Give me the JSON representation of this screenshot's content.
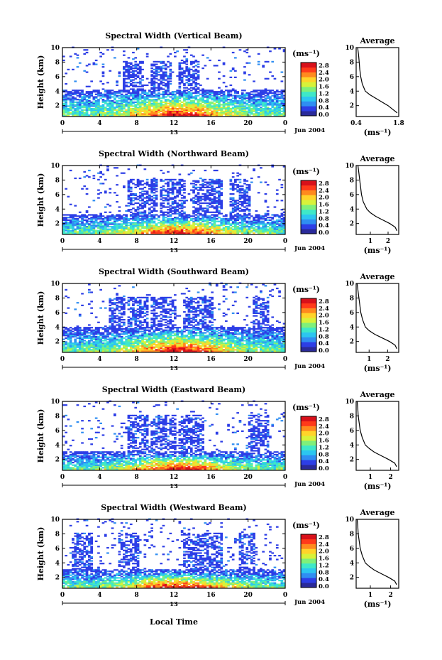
{
  "colorbar": {
    "unit": "(ms⁻¹)",
    "ticks": [
      "2.8",
      "2.4",
      "2.0",
      "1.6",
      "1.2",
      "0.8",
      "0.4",
      "0.0"
    ],
    "colors": [
      "#2a2a9a",
      "#2d3ee6",
      "#2f8ef2",
      "#2cc6f0",
      "#3ee8c8",
      "#7ff07a",
      "#d8f23a",
      "#ffd42a",
      "#ff8a1e",
      "#ff3a1a",
      "#d8101a"
    ]
  },
  "xaxis": {
    "ticks": [
      "0",
      "4",
      "8",
      "12",
      "16",
      "20",
      "0"
    ],
    "sub_label": "13",
    "date_label": "Jun 2004",
    "xlabel": "Local Time"
  },
  "ylabel": "Height (km)",
  "yticks": [
    "10",
    "8",
    "6",
    "4",
    "2"
  ],
  "profile_title": "Average",
  "profile_unit": "(ms⁻¹)",
  "chart_data": [
    {
      "type": "heatmap",
      "title": "Spectral Width (Vertical Beam)",
      "xlabel": "Local Time",
      "ylabel": "Height (km)",
      "x_range": [
        0,
        24
      ],
      "y_range": [
        0.5,
        10
      ],
      "upper_top": 4.2,
      "upper_cols": [
        [
          6.5,
          8.5
        ],
        [
          9.5,
          11.5
        ],
        [
          12.5,
          14.5
        ]
      ],
      "profile": {
        "type": "line",
        "title": "Average",
        "xticks": [
          "0.4",
          "1.8"
        ],
        "xlim": [
          0.4,
          1.8
        ],
        "x": [
          0.45,
          0.48,
          0.5,
          0.52,
          0.55,
          0.6,
          0.7,
          0.85,
          1.05,
          1.25,
          1.45,
          1.6,
          1.75
        ],
        "y": [
          10,
          9,
          8,
          7,
          6,
          5,
          4,
          3.5,
          3,
          2.5,
          2,
          1.5,
          1
        ]
      }
    },
    {
      "type": "heatmap",
      "title": "Spectral Width (Northward Beam)",
      "xlabel": "Local Time",
      "ylabel": "Height (km)",
      "x_range": [
        0,
        24
      ],
      "y_range": [
        0.5,
        10
      ],
      "upper_top": 3.2,
      "upper_cols": [
        [
          7,
          10
        ],
        [
          10.5,
          13
        ],
        [
          14,
          17
        ],
        [
          18,
          20
        ]
      ],
      "profile": {
        "type": "line",
        "title": "Average",
        "xticks": [
          "1",
          "2"
        ],
        "xlim": [
          0.2,
          2.6
        ],
        "x": [
          0.3,
          0.35,
          0.4,
          0.45,
          0.5,
          0.6,
          0.8,
          1.0,
          1.3,
          1.7,
          2.1,
          2.4,
          2.5
        ],
        "y": [
          10,
          9,
          8,
          7,
          6,
          5,
          4,
          3.5,
          3,
          2.5,
          2,
          1.5,
          1
        ]
      }
    },
    {
      "type": "heatmap",
      "title": "Spectral Width (Southward Beam)",
      "xlabel": "Local Time",
      "ylabel": "Height (km)",
      "x_range": [
        0,
        24
      ],
      "y_range": [
        0.5,
        10
      ],
      "upper_top": 4.0,
      "upper_cols": [
        [
          5,
          6.5
        ],
        [
          7,
          9
        ],
        [
          9.5,
          12
        ],
        [
          13,
          16
        ],
        [
          20.5,
          22
        ]
      ],
      "profile": {
        "type": "line",
        "title": "Average",
        "xticks": [
          "1",
          "2"
        ],
        "xlim": [
          0.3,
          2.6
        ],
        "x": [
          0.35,
          0.4,
          0.45,
          0.5,
          0.55,
          0.65,
          0.8,
          1.0,
          1.3,
          1.7,
          2.1,
          2.4,
          2.5
        ],
        "y": [
          10,
          9,
          8,
          7,
          6,
          5,
          4,
          3.5,
          3,
          2.5,
          2,
          1.5,
          1
        ]
      }
    },
    {
      "type": "heatmap",
      "title": "Spectral Width (Eastward Beam)",
      "xlabel": "Local Time",
      "ylabel": "Height (km)",
      "x_range": [
        0,
        24
      ],
      "y_range": [
        0.5,
        10
      ],
      "upper_top": 3.0,
      "upper_cols": [
        [
          7,
          9
        ],
        [
          9.5,
          12
        ],
        [
          12.5,
          15
        ],
        [
          20,
          22
        ]
      ],
      "profile": {
        "type": "line",
        "title": "Average",
        "xticks": [
          "1",
          "2"
        ],
        "xlim": [
          0.3,
          2.4
        ],
        "x": [
          0.35,
          0.38,
          0.4,
          0.45,
          0.5,
          0.6,
          0.75,
          0.95,
          1.2,
          1.55,
          1.9,
          2.2,
          2.3
        ],
        "y": [
          10,
          9,
          8,
          7,
          6,
          5,
          4,
          3.5,
          3,
          2.5,
          2,
          1.5,
          1
        ]
      }
    },
    {
      "type": "heatmap",
      "title": "Spectral Width (Westward Beam)",
      "xlabel": "Local Time",
      "ylabel": "Height (km)",
      "x_range": [
        0,
        24
      ],
      "y_range": [
        0.5,
        10
      ],
      "upper_top": 3.0,
      "upper_cols": [
        [
          1,
          3
        ],
        [
          6,
          8
        ],
        [
          13,
          17
        ],
        [
          19,
          20.5
        ]
      ],
      "profile": {
        "type": "line",
        "title": "Average",
        "xticks": [
          "1",
          "2"
        ],
        "xlim": [
          0.3,
          2.4
        ],
        "x": [
          0.35,
          0.38,
          0.4,
          0.45,
          0.5,
          0.6,
          0.75,
          0.95,
          1.2,
          1.55,
          1.9,
          2.2,
          2.3
        ],
        "y": [
          10,
          9,
          8,
          7,
          6,
          5,
          4,
          3.5,
          3,
          2.5,
          2,
          1.5,
          1
        ]
      }
    }
  ]
}
